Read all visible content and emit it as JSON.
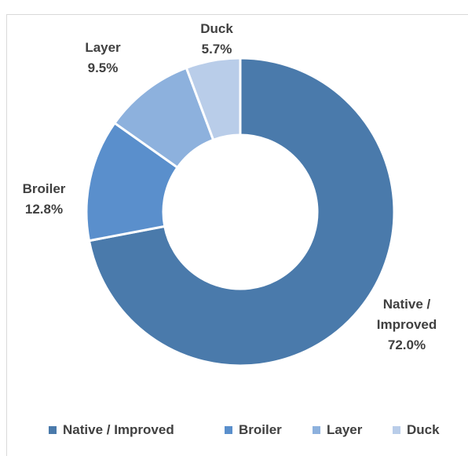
{
  "chart_data": {
    "type": "donut",
    "categories": [
      "Native / Improved",
      "Broiler",
      "Layer",
      "Duck"
    ],
    "values": [
      72.0,
      12.8,
      9.5,
      5.7
    ],
    "value_labels": [
      "72.0%",
      "12.8%",
      "9.5%",
      "5.7%"
    ],
    "colors": [
      "#4a7aab",
      "#5a8fcc",
      "#8db1dd",
      "#b9cde9"
    ],
    "legend": "bottom"
  }
}
